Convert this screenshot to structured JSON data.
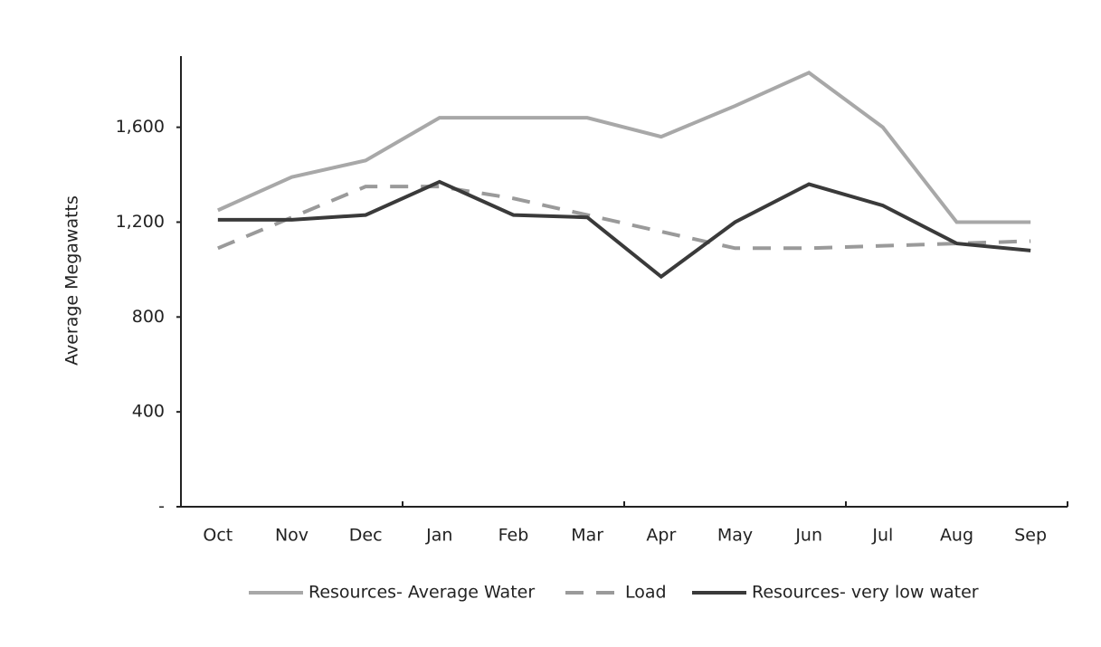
{
  "chart_data": {
    "type": "line",
    "y_label": "Average Megawatts",
    "categories": [
      "Oct",
      "Nov",
      "Dec",
      "Jan",
      "Feb",
      "Mar",
      "Apr",
      "May",
      "Jun",
      "Jul",
      "Aug",
      "Sep"
    ],
    "series": [
      {
        "name": "Resources- Average Water",
        "color": "#a8a8a8",
        "dash": "solid",
        "values": [
          1250,
          1390,
          1460,
          1640,
          1640,
          1640,
          1560,
          1690,
          1830,
          1600,
          1200,
          1200
        ]
      },
      {
        "name": "Load",
        "color": "#9a9a9a",
        "dash": "dashed",
        "values": [
          1090,
          1220,
          1350,
          1350,
          1300,
          1230,
          1160,
          1090,
          1090,
          1100,
          1110,
          1120
        ]
      },
      {
        "name": "Resources- very low water",
        "color": "#3a3a3a",
        "dash": "solid",
        "values": [
          1210,
          1210,
          1230,
          1370,
          1230,
          1220,
          970,
          1200,
          1360,
          1270,
          1110,
          1080
        ]
      }
    ],
    "ylim": [
      0,
      1900
    ],
    "yticks": [
      {
        "value": 0,
        "label": "-"
      },
      400,
      800,
      {
        "value": 1200,
        "label": "1,200"
      },
      {
        "value": 1600,
        "label": "1,600"
      }
    ],
    "grid": false,
    "legend": "bottom"
  }
}
